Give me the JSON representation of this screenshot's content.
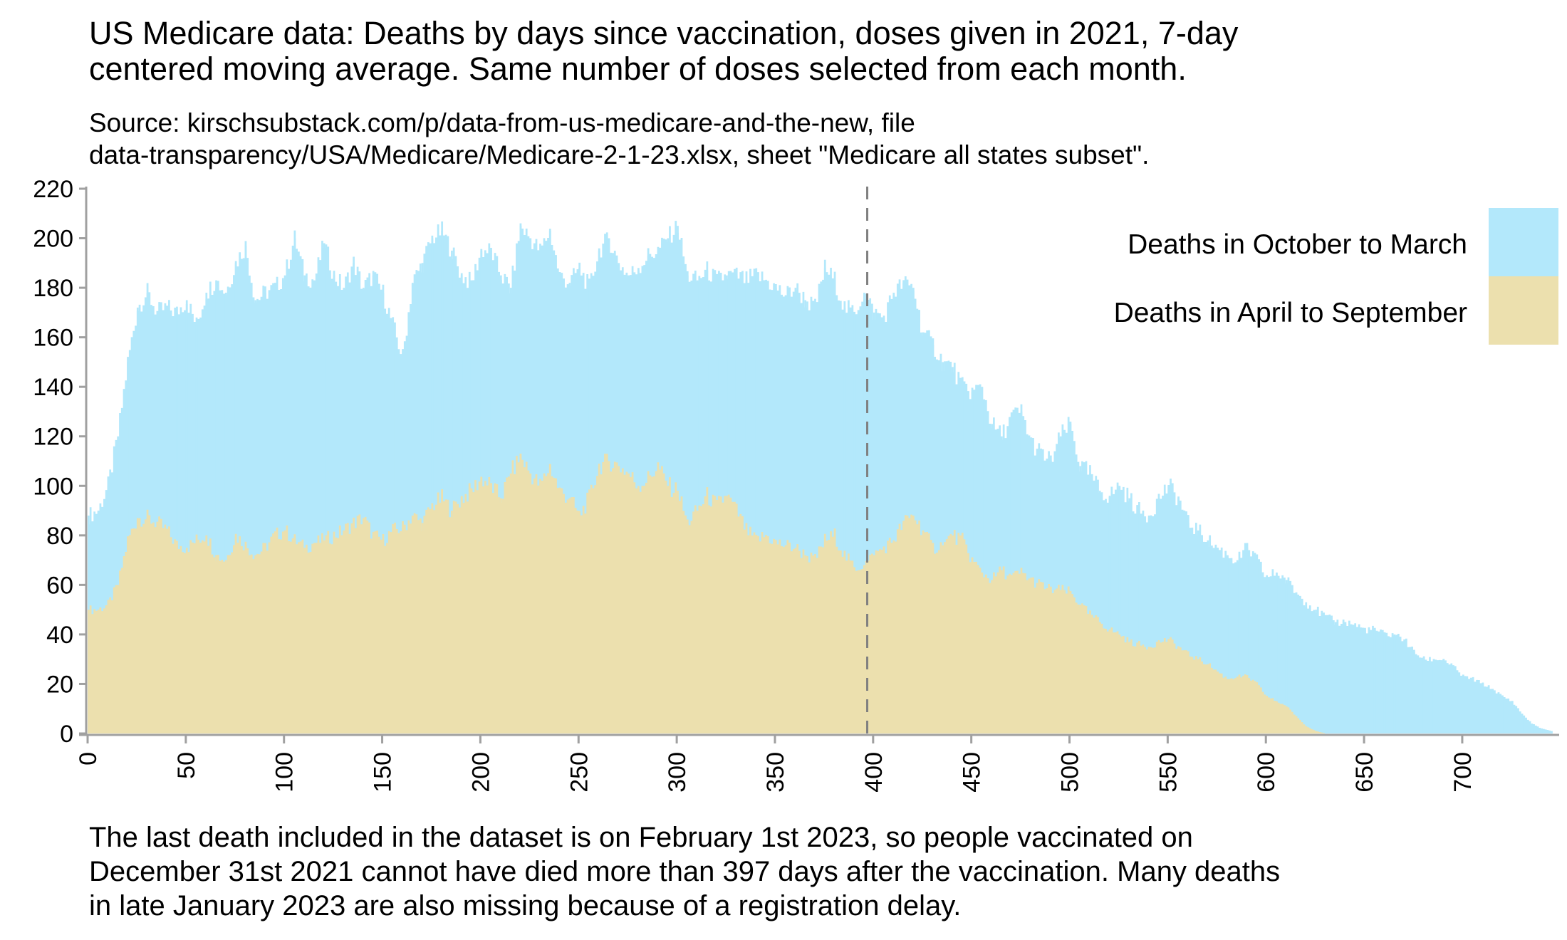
{
  "title_lines": [
    "US Medicare data: Deaths by days since vaccination, doses given in 2021, 7-day",
    "centered moving average. Same number of doses selected from each month."
  ],
  "subtitle_lines": [
    "Source: kirschsubstack.com/p/data-from-us-medicare-and-the-new, file",
    "data-transparency/USA/Medicare/Medicare-2-1-23.xlsx, sheet \"Medicare all states subset\"."
  ],
  "note_lines": [
    "The last death included in the dataset is on February 1st 2023, so people vaccinated on",
    "December 31st 2021 cannot have died more than 397 days after the vaccination. Many deaths",
    "in late January 2023 are also missing because of a registration delay."
  ],
  "chart_data": {
    "type": "bar",
    "stacked": false,
    "title": "US Medicare data: Deaths by days since vaccination, doses given in 2021, 7-day centered moving average. Same number of doses selected from each month.",
    "xlabel": "",
    "ylabel": "",
    "xlim": [
      0,
      745
    ],
    "ylim": [
      0,
      220
    ],
    "x_ticks": [
      0,
      50,
      100,
      150,
      200,
      250,
      300,
      350,
      400,
      450,
      500,
      550,
      600,
      650,
      700
    ],
    "y_ticks": [
      0,
      20,
      40,
      60,
      80,
      100,
      120,
      140,
      160,
      180,
      200,
      220
    ],
    "grid": false,
    "legend_position": "top-right",
    "reference_line": {
      "x": 397,
      "style": "dashed",
      "color": "#808080"
    },
    "x_step_days": 5,
    "series": [
      {
        "name": "Deaths in October to March",
        "color": "#b3e8fb",
        "values": [
          88,
          90,
          100,
          120,
          150,
          172,
          178,
          170,
          172,
          170,
          175,
          165,
          178,
          183,
          178,
          190,
          197,
          175,
          178,
          180,
          185,
          200,
          185,
          183,
          198,
          185,
          180,
          190,
          180,
          185,
          178,
          165,
          152,
          182,
          190,
          200,
          203,
          195,
          185,
          182,
          195,
          195,
          185,
          180,
          205,
          200,
          195,
          203,
          185,
          182,
          188,
          180,
          195,
          200,
          190,
          185,
          188,
          193,
          195,
          200,
          205,
          185,
          183,
          187,
          183,
          185,
          185,
          183,
          185,
          183,
          180,
          177,
          180,
          175,
          172,
          188,
          183,
          172,
          170,
          178,
          170,
          168,
          178,
          182,
          180,
          162,
          157,
          150,
          148,
          140,
          138,
          140,
          125,
          120,
          128,
          130,
          118,
          113,
          110,
          120,
          125,
          108,
          105,
          98,
          96,
          100,
          95,
          90,
          88,
          95,
          100,
          95,
          85,
          82,
          78,
          75,
          72,
          70,
          75,
          70,
          63,
          65,
          62,
          57,
          53,
          50,
          47,
          45,
          45,
          44,
          42,
          42,
          40,
          40,
          38,
          33,
          30,
          30,
          30,
          27,
          23,
          22,
          20,
          18,
          15,
          13,
          8,
          4,
          2,
          1
        ]
      },
      {
        "name": "Deaths in April to September",
        "color": "#ece0ae",
        "values": [
          50,
          50,
          52,
          60,
          78,
          87,
          87,
          85,
          82,
          76,
          75,
          78,
          80,
          72,
          70,
          80,
          76,
          72,
          75,
          80,
          82,
          78,
          75,
          77,
          78,
          80,
          82,
          85,
          87,
          80,
          78,
          82,
          83,
          88,
          85,
          92,
          95,
          90,
          95,
          98,
          103,
          100,
          95,
          105,
          112,
          105,
          100,
          108,
          98,
          95,
          88,
          95,
          108,
          110,
          108,
          105,
          100,
          103,
          108,
          100,
          98,
          85,
          90,
          96,
          92,
          96,
          90,
          82,
          78,
          80,
          77,
          76,
          75,
          72,
          70,
          78,
          80,
          72,
          67,
          68,
          72,
          75,
          78,
          85,
          88,
          82,
          75,
          76,
          80,
          78,
          70,
          65,
          62,
          66,
          63,
          65,
          62,
          60,
          58,
          58,
          57,
          52,
          48,
          45,
          42,
          40,
          37,
          36,
          35,
          37,
          38,
          35,
          32,
          30,
          28,
          25,
          22,
          23,
          23,
          20,
          15,
          13,
          11,
          7,
          3,
          1,
          0,
          0,
          0,
          0,
          0,
          0,
          0,
          0,
          0,
          0,
          0,
          0,
          0,
          0,
          0,
          0,
          0,
          0,
          0,
          0,
          0,
          0,
          0,
          0
        ]
      }
    ]
  },
  "legend": {
    "items": [
      {
        "label": "Deaths in October to March",
        "color": "#b3e8fb"
      },
      {
        "label": "Deaths in April to September",
        "color": "#ece0ae"
      }
    ]
  }
}
